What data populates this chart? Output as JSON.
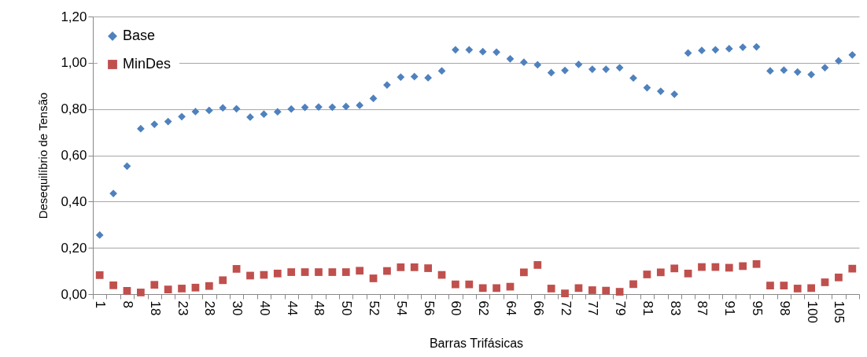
{
  "chart_data": {
    "type": "scatter",
    "xlabel": "Barras Trifásicas",
    "ylabel": "Desequilíbrio de Tensão",
    "categories": [
      "1",
      null,
      "8",
      null,
      "18",
      null,
      "23",
      null,
      "28",
      null,
      "30",
      null,
      "40",
      null,
      "44",
      null,
      "48",
      null,
      "50",
      null,
      "52",
      null,
      "54",
      null,
      "56",
      null,
      "60",
      null,
      "62",
      null,
      "64",
      null,
      "66",
      null,
      "72",
      null,
      "77",
      null,
      "79",
      null,
      "81",
      null,
      "83",
      null,
      "87",
      null,
      "91",
      null,
      "95",
      null,
      "98",
      null,
      "100",
      null,
      "105",
      null
    ],
    "series": [
      {
        "name": "Base",
        "color": "#4f81bd",
        "marker": "diamond",
        "values": [
          0.255,
          0.435,
          0.553,
          0.715,
          0.734,
          0.746,
          0.767,
          0.789,
          0.794,
          0.805,
          0.801,
          0.765,
          0.778,
          0.788,
          0.8,
          0.807,
          0.809,
          0.808,
          0.811,
          0.816,
          0.846,
          0.904,
          0.938,
          0.94,
          0.935,
          0.965,
          1.056,
          1.056,
          1.048,
          1.046,
          1.017,
          1.002,
          0.991,
          0.957,
          0.967,
          0.993,
          0.972,
          0.972,
          0.979,
          0.934,
          0.892,
          0.877,
          0.864,
          1.042,
          1.053,
          1.056,
          1.061,
          1.067,
          1.069,
          0.965,
          0.968,
          0.96,
          0.949,
          0.979,
          1.008,
          1.034
        ]
      },
      {
        "name": "MinDes",
        "color": "#c0504d",
        "marker": "square",
        "values": [
          0.082,
          0.038,
          0.014,
          0.007,
          0.04,
          0.02,
          0.024,
          0.028,
          0.035,
          0.06,
          0.109,
          0.08,
          0.083,
          0.089,
          0.095,
          0.095,
          0.095,
          0.095,
          0.095,
          0.101,
          0.068,
          0.1,
          0.116,
          0.116,
          0.112,
          0.083,
          0.042,
          0.042,
          0.026,
          0.026,
          0.032,
          0.094,
          0.126,
          0.024,
          0.003,
          0.026,
          0.017,
          0.015,
          0.01,
          0.043,
          0.085,
          0.094,
          0.111,
          0.089,
          0.117,
          0.117,
          0.114,
          0.121,
          0.13,
          0.037,
          0.037,
          0.024,
          0.026,
          0.051,
          0.072,
          0.11
        ]
      }
    ],
    "ylim": [
      0,
      1.2
    ],
    "yticks": [
      {
        "value": 0,
        "label": "0,00"
      },
      {
        "value": 0.2,
        "label": "0,20"
      },
      {
        "value": 0.4,
        "label": "0,40"
      },
      {
        "value": 0.6,
        "label": "0,60"
      },
      {
        "value": 0.8,
        "label": "0,80"
      },
      {
        "value": 1.0,
        "label": "1,00"
      },
      {
        "value": 1.2,
        "label": "1,20"
      }
    ],
    "grid": "y",
    "legend": "top left"
  }
}
